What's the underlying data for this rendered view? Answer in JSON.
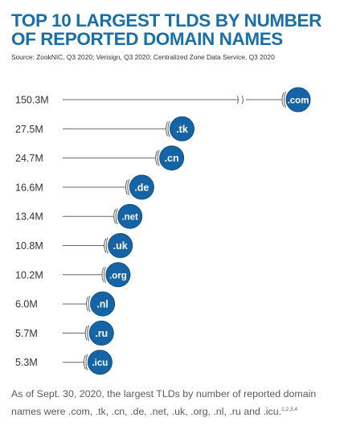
{
  "title": "TOP 10 LARGEST TLDS BY NUMBER OF REPORTED DOMAIN NAMES",
  "source": "Source: ZookNIC, Q3 2020; Verisign, Q3 2020; Centralized Zone Data Service, Q3 2020",
  "caption": {
    "text": "As of Sept. 30, 2020, the largest TLDs by number of reported domain names were .com, .tk, .cn, .de, .net, .uk, .org, .nl, .ru and .icu.",
    "superscript": "1,2,3,4"
  },
  "colors": {
    "title": "#1a6fa8",
    "bubble": "#1565a6",
    "bubble_edge": "#0d4f86",
    "line": "#666666",
    "label": "#333333"
  },
  "chart_data": {
    "type": "lollipop",
    "broken_axis_for": ".com",
    "categories": [
      ".com",
      ".tk",
      ".cn",
      ".de",
      ".net",
      ".uk",
      ".org",
      ".nl",
      ".ru",
      ".icu"
    ],
    "value_labels": [
      "150.3M",
      "27.5M",
      "24.7M",
      "16.6M",
      "13.4M",
      "10.8M",
      "10.2M",
      "6.0M",
      "5.7M",
      "5.3M"
    ],
    "values": [
      150.3,
      27.5,
      24.7,
      16.6,
      13.4,
      10.8,
      10.2,
      6.0,
      5.7,
      5.3
    ],
    "unit": "M"
  }
}
